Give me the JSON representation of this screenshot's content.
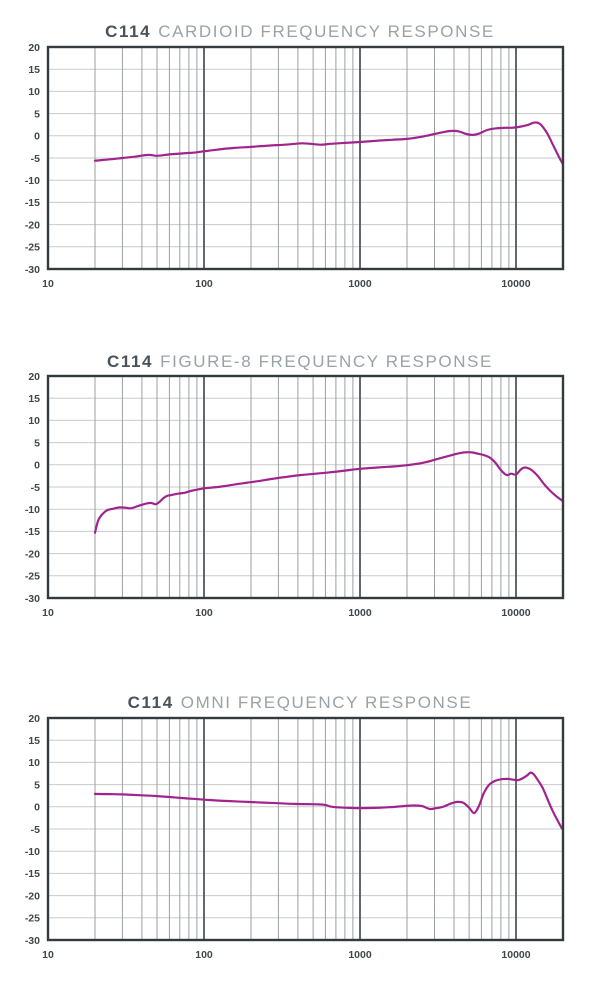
{
  "style": {
    "curve_color": "#a1248e",
    "border_color": "#343b3f",
    "decade_line_color": "#51585b",
    "minor_line_color": "#9aa0a2",
    "h_line_color": "#c7cacb",
    "tick_label_color": "#3f474c",
    "title_model_color": "#49525a",
    "title_rest_color": "#9aa2a7",
    "background": "#ffffff"
  },
  "chart_data": [
    {
      "type": "line",
      "id": "cardioid",
      "title": "C114 CARDIOID FREQUENCY RESPONSE",
      "title_model": "C114",
      "title_rest": "CARDIOID FREQUENCY RESPONSE",
      "xlabel": "",
      "ylabel": "",
      "x_scale": "log",
      "xlim": [
        10,
        20000
      ],
      "ylim": [
        -30,
        20
      ],
      "grid": true,
      "y_ticks": [
        20,
        15,
        10,
        5,
        0,
        -5,
        -10,
        -15,
        -20,
        -25,
        -30
      ],
      "x_ticks": [
        {
          "f": 10,
          "label": "10"
        },
        {
          "f": 100,
          "label": "100"
        },
        {
          "f": 1000,
          "label": "1000"
        },
        {
          "f": 10000,
          "label": "10000"
        }
      ],
      "series": [
        {
          "name": "frequency-response-dB",
          "points": [
            [
              20,
              -5.6
            ],
            [
              25,
              -5.3
            ],
            [
              30,
              -5.0
            ],
            [
              36,
              -4.7
            ],
            [
              44,
              -4.3
            ],
            [
              50,
              -4.5
            ],
            [
              60,
              -4.2
            ],
            [
              70,
              -4.0
            ],
            [
              85,
              -3.8
            ],
            [
              100,
              -3.5
            ],
            [
              130,
              -3.0
            ],
            [
              160,
              -2.7
            ],
            [
              200,
              -2.5
            ],
            [
              260,
              -2.2
            ],
            [
              330,
              -2.0
            ],
            [
              420,
              -1.7
            ],
            [
              480,
              -1.8
            ],
            [
              560,
              -2.0
            ],
            [
              650,
              -1.8
            ],
            [
              800,
              -1.6
            ],
            [
              1000,
              -1.4
            ],
            [
              1300,
              -1.1
            ],
            [
              1600,
              -0.9
            ],
            [
              2000,
              -0.7
            ],
            [
              2500,
              -0.2
            ],
            [
              3000,
              0.4
            ],
            [
              3500,
              0.9
            ],
            [
              3900,
              1.1
            ],
            [
              4300,
              1.0
            ],
            [
              4800,
              0.4
            ],
            [
              5300,
              0.2
            ],
            [
              5800,
              0.5
            ],
            [
              6400,
              1.2
            ],
            [
              6900,
              1.5
            ],
            [
              7500,
              1.7
            ],
            [
              8500,
              1.8
            ],
            [
              9300,
              1.8
            ],
            [
              10000,
              1.9
            ],
            [
              10800,
              2.1
            ],
            [
              11800,
              2.4
            ],
            [
              12800,
              2.9
            ],
            [
              13500,
              3.0
            ],
            [
              14200,
              2.7
            ],
            [
              15000,
              1.8
            ],
            [
              16000,
              0.3
            ],
            [
              17500,
              -2.5
            ],
            [
              19000,
              -5.0
            ],
            [
              20000,
              -6.4
            ]
          ]
        }
      ]
    },
    {
      "type": "line",
      "id": "figure-8",
      "title": "C114 FIGURE-8 FREQUENCY RESPONSE",
      "title_model": "C114",
      "title_rest": "FIGURE-8 FREQUENCY RESPONSE",
      "xlabel": "",
      "ylabel": "",
      "x_scale": "log",
      "xlim": [
        10,
        20000
      ],
      "ylim": [
        -30,
        20
      ],
      "grid": true,
      "y_ticks": [
        20,
        15,
        10,
        5,
        0,
        -5,
        -10,
        -15,
        -20,
        -25,
        -30
      ],
      "x_ticks": [
        {
          "f": 10,
          "label": "10"
        },
        {
          "f": 100,
          "label": "100"
        },
        {
          "f": 1000,
          "label": "1000"
        },
        {
          "f": 10000,
          "label": "10000"
        }
      ],
      "series": [
        {
          "name": "frequency-response-dB",
          "points": [
            [
              20,
              -15.3
            ],
            [
              21,
              -12.5
            ],
            [
              22.5,
              -11.0
            ],
            [
              24,
              -10.2
            ],
            [
              26,
              -9.9
            ],
            [
              29,
              -9.6
            ],
            [
              32,
              -9.7
            ],
            [
              34,
              -9.8
            ],
            [
              37,
              -9.4
            ],
            [
              40,
              -9.0
            ],
            [
              43,
              -8.7
            ],
            [
              46,
              -8.6
            ],
            [
              49,
              -8.9
            ],
            [
              52,
              -8.3
            ],
            [
              55,
              -7.5
            ],
            [
              58,
              -7.0
            ],
            [
              62,
              -6.8
            ],
            [
              68,
              -6.5
            ],
            [
              75,
              -6.3
            ],
            [
              82,
              -5.9
            ],
            [
              90,
              -5.6
            ],
            [
              100,
              -5.3
            ],
            [
              115,
              -5.1
            ],
            [
              135,
              -4.8
            ],
            [
              160,
              -4.4
            ],
            [
              190,
              -4.0
            ],
            [
              230,
              -3.6
            ],
            [
              280,
              -3.1
            ],
            [
              340,
              -2.7
            ],
            [
              420,
              -2.3
            ],
            [
              520,
              -2.0
            ],
            [
              640,
              -1.7
            ],
            [
              800,
              -1.3
            ],
            [
              1000,
              -0.9
            ],
            [
              1300,
              -0.6
            ],
            [
              1600,
              -0.4
            ],
            [
              2000,
              -0.1
            ],
            [
              2400,
              0.3
            ],
            [
              2800,
              0.8
            ],
            [
              3200,
              1.4
            ],
            [
              3700,
              2.0
            ],
            [
              4200,
              2.5
            ],
            [
              4700,
              2.8
            ],
            [
              5200,
              2.8
            ],
            [
              5700,
              2.5
            ],
            [
              6200,
              2.2
            ],
            [
              6800,
              1.6
            ],
            [
              7400,
              0.4
            ],
            [
              8000,
              -1.2
            ],
            [
              8700,
              -2.3
            ],
            [
              9300,
              -2.0
            ],
            [
              10000,
              -2.2
            ],
            [
              10700,
              -1.1
            ],
            [
              11400,
              -0.6
            ],
            [
              12200,
              -0.9
            ],
            [
              13000,
              -1.6
            ],
            [
              14000,
              -2.8
            ],
            [
              15000,
              -4.2
            ],
            [
              16500,
              -5.8
            ],
            [
              18000,
              -7.0
            ],
            [
              20000,
              -8.2
            ]
          ]
        }
      ]
    },
    {
      "type": "line",
      "id": "omni",
      "title": "C114 OMNI FREQUENCY RESPONSE",
      "title_model": "C114",
      "title_rest": "OMNI FREQUENCY RESPONSE",
      "xlabel": "",
      "ylabel": "",
      "x_scale": "log",
      "xlim": [
        10,
        20000
      ],
      "ylim": [
        -30,
        20
      ],
      "grid": true,
      "y_ticks": [
        20,
        15,
        10,
        5,
        0,
        -5,
        -10,
        -15,
        -20,
        -25,
        -30
      ],
      "x_ticks": [
        {
          "f": 10,
          "label": "10"
        },
        {
          "f": 100,
          "label": "100"
        },
        {
          "f": 1000,
          "label": "1000"
        },
        {
          "f": 10000,
          "label": "10000"
        }
      ],
      "series": [
        {
          "name": "frequency-response-dB",
          "points": [
            [
              20,
              2.9
            ],
            [
              25,
              2.85
            ],
            [
              30,
              2.8
            ],
            [
              40,
              2.6
            ],
            [
              50,
              2.4
            ],
            [
              60,
              2.2
            ],
            [
              70,
              2.0
            ],
            [
              85,
              1.8
            ],
            [
              100,
              1.6
            ],
            [
              125,
              1.4
            ],
            [
              155,
              1.25
            ],
            [
              190,
              1.1
            ],
            [
              240,
              0.95
            ],
            [
              300,
              0.8
            ],
            [
              380,
              0.65
            ],
            [
              460,
              0.6
            ],
            [
              550,
              0.55
            ],
            [
              600,
              0.4
            ],
            [
              650,
              0.05
            ],
            [
              700,
              -0.1
            ],
            [
              800,
              -0.2
            ],
            [
              1000,
              -0.3
            ],
            [
              1250,
              -0.25
            ],
            [
              1550,
              -0.1
            ],
            [
              1900,
              0.15
            ],
            [
              2200,
              0.3
            ],
            [
              2500,
              0.15
            ],
            [
              2800,
              -0.5
            ],
            [
              3100,
              -0.3
            ],
            [
              3400,
              0.0
            ],
            [
              3800,
              0.7
            ],
            [
              4200,
              1.1
            ],
            [
              4600,
              0.9
            ],
            [
              5000,
              -0.2
            ],
            [
              5400,
              -1.4
            ],
            [
              5800,
              0.3
            ],
            [
              6200,
              3.0
            ],
            [
              6700,
              4.9
            ],
            [
              7300,
              5.8
            ],
            [
              8000,
              6.2
            ],
            [
              8800,
              6.3
            ],
            [
              9600,
              6.1
            ],
            [
              10300,
              6.0
            ],
            [
              11000,
              6.4
            ],
            [
              11800,
              7.1
            ],
            [
              12400,
              7.7
            ],
            [
              13000,
              7.3
            ],
            [
              13800,
              6.0
            ],
            [
              14800,
              4.3
            ],
            [
              16000,
              1.5
            ],
            [
              17200,
              -1.0
            ],
            [
              18400,
              -3.0
            ],
            [
              19500,
              -4.6
            ],
            [
              20000,
              -5.2
            ]
          ]
        }
      ]
    }
  ]
}
